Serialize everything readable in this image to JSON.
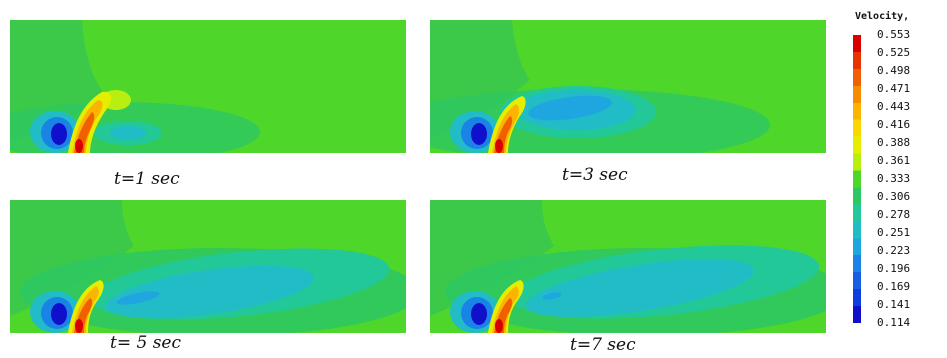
{
  "panels": [
    {
      "id": "t1",
      "label": "t=1 sec"
    },
    {
      "id": "t3",
      "label": "t=3 sec"
    },
    {
      "id": "t5",
      "label": "t= 5 sec"
    },
    {
      "id": "t7",
      "label": "t=7 sec"
    }
  ],
  "legend": {
    "title": "Velocity,",
    "levels": [
      "0.553",
      "0.525",
      "0.498",
      "0.471",
      "0.443",
      "0.416",
      "0.388",
      "0.361",
      "0.333",
      "0.306",
      "0.278",
      "0.251",
      "0.223",
      "0.196",
      "0.169",
      "0.141",
      "0.114"
    ],
    "colors": [
      "#d90000",
      "#e63300",
      "#f06000",
      "#f78c00",
      "#fbb400",
      "#f8d800",
      "#e6ee00",
      "#b8ee10",
      "#4fd62b",
      "#2ec860",
      "#22c898",
      "#21bcc6",
      "#1fa6e0",
      "#1a84e6",
      "#1560e2",
      "#0f3ee0",
      "#1010cc"
    ]
  },
  "colors": {
    "background_field": "#4fd62b",
    "upper_left_field": "#3cc94a"
  }
}
